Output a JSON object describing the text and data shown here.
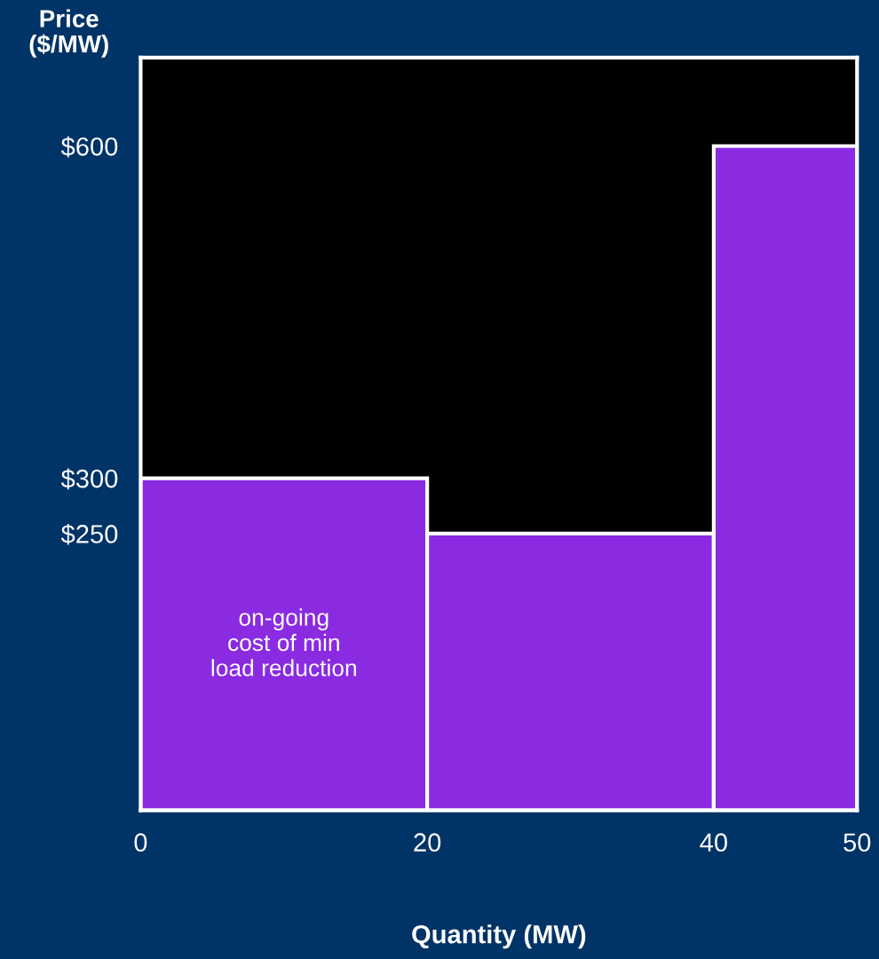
{
  "chart_data": {
    "type": "histogram",
    "xlabel": "Quantity (MW)",
    "ylabel": "Price\n($/MW)",
    "bins": [
      0,
      20,
      40,
      50
    ],
    "values": [
      300,
      250,
      600
    ],
    "color": "#8a2be2",
    "xlim": [
      0,
      50
    ],
    "xticks": [
      0,
      20,
      40,
      50
    ],
    "ylim": [
      0,
      680
    ],
    "yticks": [
      {
        "value": 250,
        "label": "$250"
      },
      {
        "value": 300,
        "label": "$300"
      },
      {
        "value": 600,
        "label": "$600"
      }
    ],
    "annotations": [
      "on-going\ncost of min\nload reduction"
    ],
    "grid": false
  }
}
